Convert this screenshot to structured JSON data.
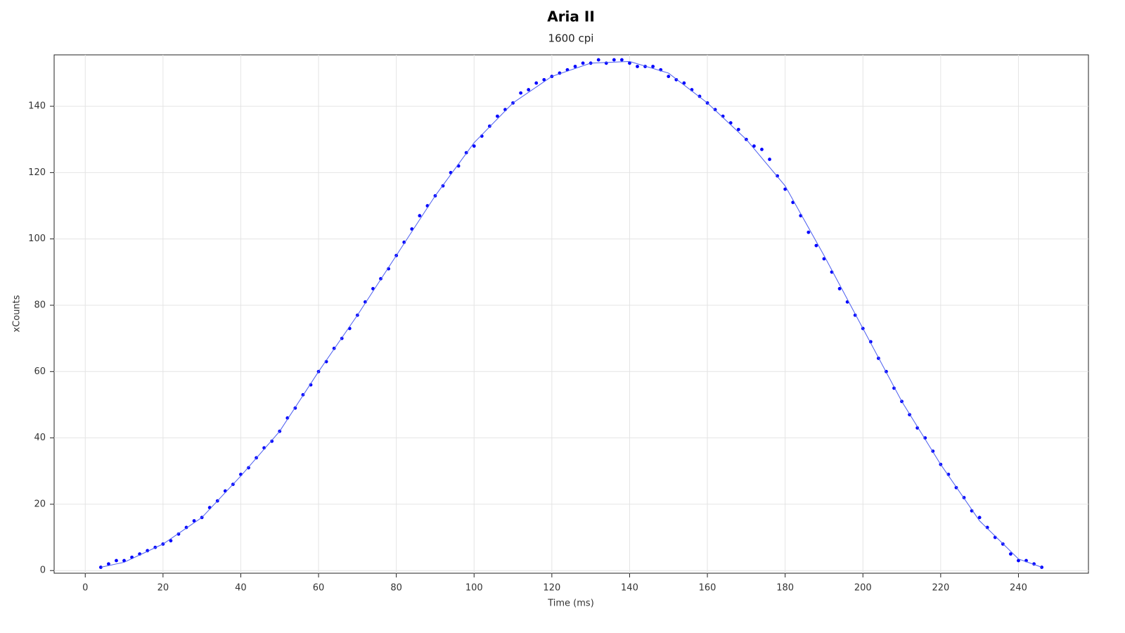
{
  "chart_data": {
    "type": "scatter",
    "title": "Aria II",
    "subtitle": "1600 cpi",
    "x_label": "Time (ms)",
    "y_label": "xCounts",
    "xlim": [
      -8,
      258
    ],
    "ylim": [
      -0.8,
      155.5
    ],
    "xticks": [
      0,
      20,
      40,
      60,
      80,
      100,
      120,
      140,
      160,
      180,
      200,
      220,
      240
    ],
    "yticks": [
      0,
      20,
      40,
      60,
      80,
      100,
      120,
      140
    ],
    "grid": true,
    "series": [
      {
        "style": "points",
        "color": "#0000ff",
        "x": [
          4,
          6,
          8,
          10,
          12,
          14,
          16,
          18,
          20,
          22,
          24,
          26,
          28,
          30,
          32,
          34,
          36,
          38,
          40,
          42,
          44,
          46,
          48,
          50,
          52,
          54,
          56,
          58,
          60,
          62,
          64,
          66,
          68,
          70,
          72,
          74,
          76,
          78,
          80,
          82,
          84,
          86,
          88,
          90,
          92,
          94,
          96,
          98,
          100,
          102,
          104,
          106,
          108,
          110,
          112,
          114,
          116,
          118,
          120,
          122,
          124,
          126,
          128,
          130,
          132,
          134,
          136,
          138,
          140,
          142,
          144,
          146,
          148,
          150,
          152,
          154,
          156,
          158,
          160,
          162,
          164,
          166,
          168,
          170,
          172,
          174,
          176,
          178,
          180,
          182,
          184,
          186,
          188,
          190,
          192,
          194,
          196,
          198,
          200,
          202,
          204,
          206,
          208,
          210,
          212,
          214,
          216,
          218,
          220,
          222,
          224,
          226,
          228,
          230,
          232,
          234,
          236,
          238,
          240,
          242,
          244,
          246
        ],
        "values": [
          1,
          2,
          3,
          3,
          4,
          5,
          6,
          7,
          8,
          9,
          11,
          13,
          15,
          16,
          19,
          21,
          24,
          26,
          29,
          31,
          34,
          37,
          39,
          42,
          46,
          49,
          53,
          56,
          60,
          63,
          67,
          70,
          73,
          77,
          81,
          85,
          88,
          91,
          95,
          99,
          103,
          107,
          110,
          113,
          116,
          120,
          122,
          126,
          128,
          131,
          134,
          137,
          139,
          141,
          144,
          145,
          147,
          148,
          149,
          150,
          151,
          152,
          153,
          153,
          154,
          153,
          154,
          154,
          153,
          152,
          152,
          152,
          151,
          149,
          148,
          147,
          145,
          143,
          141,
          139,
          137,
          135,
          133,
          130,
          128,
          127,
          124,
          119,
          115,
          111,
          107,
          102,
          98,
          94,
          90,
          85,
          81,
          77,
          73,
          69,
          64,
          60,
          55,
          51,
          47,
          43,
          40,
          36,
          32,
          29,
          25,
          22,
          18,
          16,
          13,
          10,
          8,
          5,
          3,
          3,
          2,
          1
        ]
      },
      {
        "style": "line",
        "color": "#4a5cf0",
        "x": [
          4,
          10,
          20,
          30,
          40,
          50,
          60,
          70,
          80,
          90,
          100,
          110,
          120,
          130,
          140,
          150,
          160,
          170,
          180,
          190,
          200,
          210,
          220,
          230,
          240,
          246
        ],
        "values": [
          1,
          2.5,
          8,
          16,
          28.5,
          42,
          60,
          77,
          95,
          113,
          129,
          141,
          149,
          153,
          153.5,
          150,
          141,
          130,
          116,
          95,
          73,
          51,
          32,
          15,
          3.5,
          1
        ]
      }
    ]
  }
}
